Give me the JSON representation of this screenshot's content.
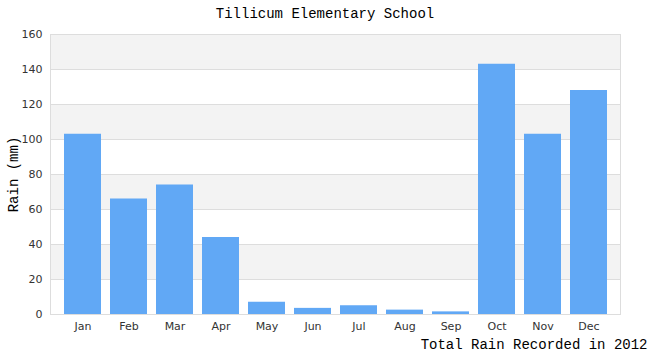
{
  "chart_data": {
    "type": "bar",
    "title": "Tillicum Elementary School",
    "y_label": "Rain (mm)",
    "x_label": "Total Rain Recorded in 2012",
    "categories": [
      "Jan",
      "Feb",
      "Mar",
      "Apr",
      "May",
      "Jun",
      "Jul",
      "Aug",
      "Sep",
      "Oct",
      "Nov",
      "Dec"
    ],
    "values": [
      103,
      66,
      74,
      44,
      7,
      3.5,
      5,
      2.5,
      1.5,
      143,
      103,
      128
    ],
    "color": "#61a8f5",
    "ylim": [
      0,
      160
    ],
    "yticks": [
      0,
      20,
      40,
      60,
      80,
      100,
      120,
      140,
      160
    ],
    "grid": true
  }
}
